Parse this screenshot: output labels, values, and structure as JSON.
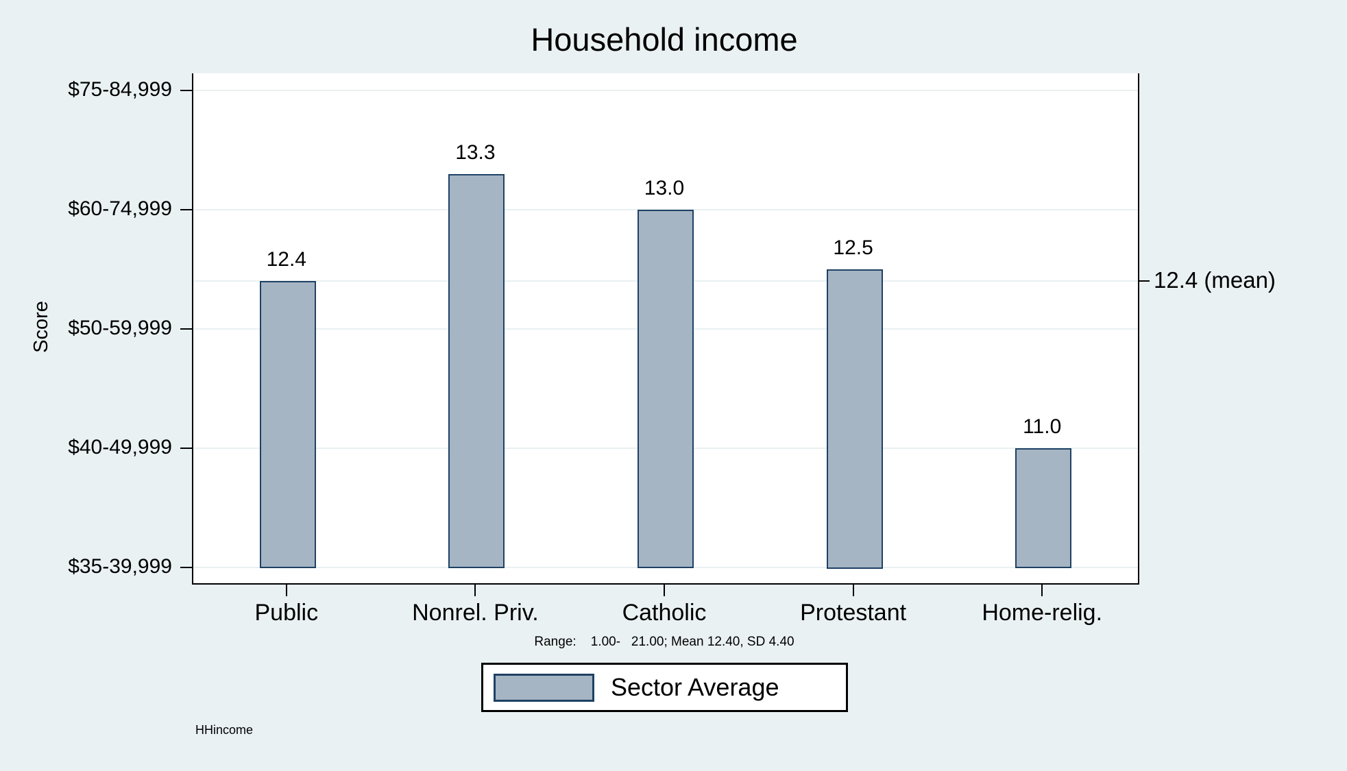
{
  "chart_data": {
    "type": "bar",
    "title": "Household income",
    "ylabel": "Score",
    "series_name": "Sector Average",
    "categories": [
      "Public",
      "Nonrel. Priv.",
      "Catholic",
      "Protestant",
      "Home-relig."
    ],
    "values": [
      12.4,
      13.3,
      13.0,
      12.5,
      11.0
    ],
    "value_labels": [
      "12.4",
      "13.3",
      "13.0",
      "12.5",
      "11.0"
    ],
    "y_axis": {
      "ticks": [
        {
          "value": 14,
          "label": "$75-84,999"
        },
        {
          "value": 13,
          "label": "$60-74,999"
        },
        {
          "value": 12,
          "label": "$50-59,999"
        },
        {
          "value": 11,
          "label": "$40-49,999"
        },
        {
          "value": 10,
          "label": "$35-39,999"
        }
      ],
      "baseline_value": 10,
      "grid": true
    },
    "mean": {
      "value": 12.4,
      "label": "12.4 (mean)"
    },
    "note": "Range:    1.00-   21.00; Mean 12.40, SD 4.40",
    "legend": {
      "position": "bottom-center",
      "label": "Sector Average"
    },
    "caption": "HHincome",
    "colors": {
      "background": "#eaf1f3",
      "plot_background": "#ffffff",
      "bar_fill": "#a6b5c4",
      "bar_border": "#1e4164",
      "gridline": "#e9f0f2",
      "axis": "#000000",
      "text": "#000000"
    }
  }
}
